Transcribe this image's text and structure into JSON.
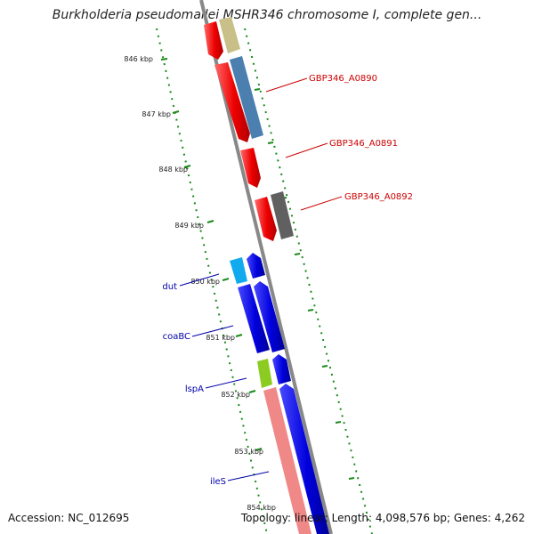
{
  "title": "Burkholderia pseudomallei MSHR346 chromosome I, complete gen...",
  "footer": {
    "accession": "Accession: NC_012695",
    "summary": "Topology: linear; Length: 4,098,576 bp; Genes: 4,262"
  },
  "ticks": [
    "846 kbp",
    "847 kbp",
    "848 kbp",
    "849 kbp",
    "850 kbp",
    "851 kbp",
    "852 kbp",
    "853 kbp",
    "854 kbp"
  ],
  "gene_labels": [
    {
      "text": "GBP346_A0890",
      "color": "#cc0000"
    },
    {
      "text": "GBP346_A0891",
      "color": "#cc0000"
    },
    {
      "text": "GBP346_A0892",
      "color": "#cc0000"
    },
    {
      "text": "dut",
      "color": "#0000aa"
    },
    {
      "text": "coaBC",
      "color": "#0000aa"
    },
    {
      "text": "lspA",
      "color": "#0000aa"
    },
    {
      "text": "ileS",
      "color": "#0000aa"
    }
  ],
  "colors": {
    "red": "#ee0000",
    "blue": "#0000dd",
    "olive": "#c8c088",
    "steel": "#4a7fb0",
    "gray": "#606060",
    "cyan": "#11aaee",
    "green": "#8ccc22",
    "salmon": "#f08888",
    "axis": "#888888",
    "tick": "#1a8a1a"
  }
}
